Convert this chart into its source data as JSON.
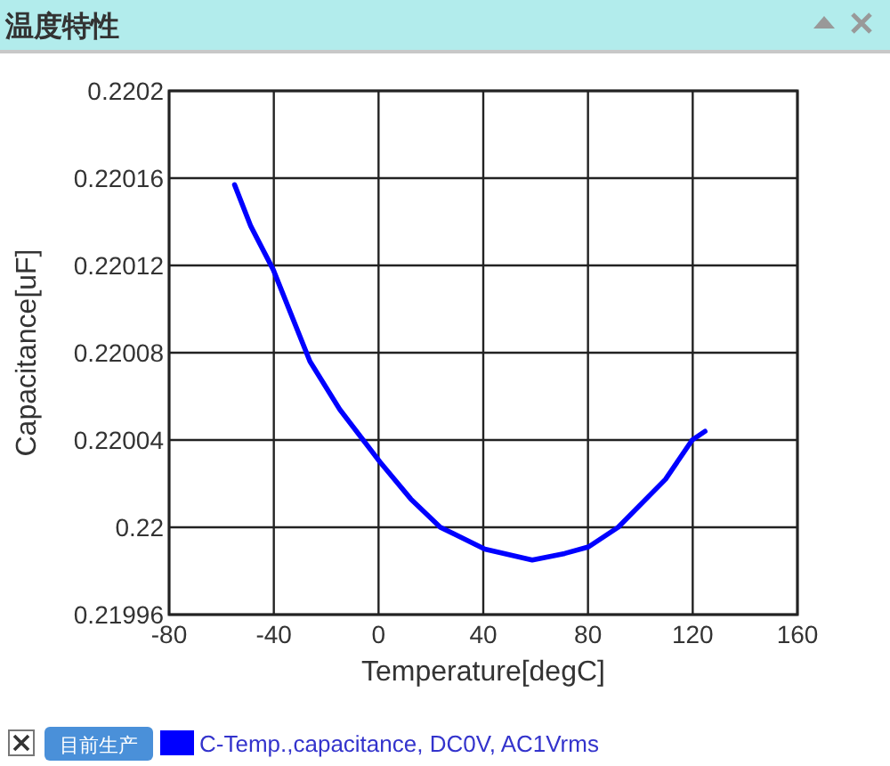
{
  "chart_data": {
    "type": "line",
    "title": "温度特性",
    "xlabel": "Temperature[degC]",
    "ylabel": "Capacitance[uF]",
    "xlim": [
      -80,
      160
    ],
    "xticks": [
      -80,
      -40,
      0,
      40,
      80,
      120,
      160
    ],
    "ylim": [
      0.21996,
      0.2202
    ],
    "yticks": [
      0.21996,
      0.22,
      0.22004,
      0.22008,
      0.22012,
      0.22016,
      0.2202
    ],
    "grid": true,
    "legend": "bottom",
    "marker": "none",
    "line_style": "solid",
    "annotations": [
      "目前生产"
    ],
    "series": [
      {
        "name": "C-Temp.,capacitance, DC0V, AC1Vrms",
        "color": "#0000ff",
        "x": [
          -55,
          -48.8,
          -40.2,
          -26.2,
          -14.8,
          0.5,
          12.3,
          23.6,
          40.6,
          58.7,
          71.1,
          80.2,
          91.5,
          109.6,
          119.8,
          124.7
        ],
        "values": [
          0.220157,
          0.220138,
          0.220118,
          0.220076,
          0.220054,
          0.22003,
          0.220013,
          0.22,
          0.21999,
          0.219985,
          0.219988,
          0.219991,
          0.22,
          0.220022,
          0.22004,
          0.220044
        ]
      }
    ]
  }
}
